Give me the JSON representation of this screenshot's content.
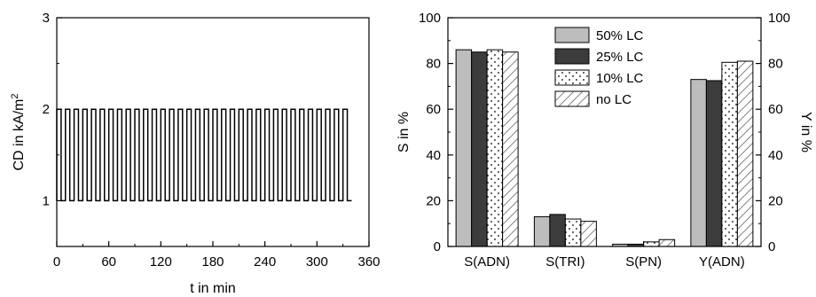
{
  "chart_data": [
    {
      "type": "line",
      "xlabel": "t in min",
      "ylabel": "CD in kA/m²",
      "ylabel_base": "CD in kA/m",
      "ylabel_sup": "2",
      "xlim": [
        0,
        360
      ],
      "ylim": [
        0.5,
        3
      ],
      "x_ticks": [
        0,
        60,
        120,
        180,
        240,
        300,
        360
      ],
      "y_ticks": [
        1,
        2,
        3
      ],
      "series": [
        {
          "description_values": "square wave alternating between 1 and 2 kA/m2, period 10 min",
          "low": 1,
          "high": 2,
          "start": 0,
          "end": 340,
          "period_min": 10,
          "step_edges": [
            0,
            5,
            10,
            15,
            20,
            25,
            30,
            35,
            40,
            45,
            50,
            55,
            60,
            65,
            70,
            75,
            80,
            85,
            90,
            95,
            100,
            105,
            110,
            115,
            120,
            125,
            130,
            135,
            140,
            145,
            150,
            155,
            160,
            165,
            170,
            175,
            180,
            185,
            190,
            195,
            200,
            205,
            210,
            215,
            220,
            225,
            230,
            235,
            240,
            245,
            250,
            255,
            260,
            265,
            270,
            275,
            280,
            285,
            290,
            295,
            300,
            305,
            310,
            315,
            320,
            325,
            330,
            335,
            340
          ]
        }
      ]
    },
    {
      "type": "bar",
      "categories": [
        "S(ADN)",
        "S(TRI)",
        "S(PN)",
        "Y(ADN)"
      ],
      "ylabel": "S in %",
      "ylabel_right": "Y in %",
      "ylim": [
        0,
        100
      ],
      "y_ticks": [
        0,
        20,
        40,
        60,
        80,
        100
      ],
      "legend_position": "top-center",
      "series": [
        {
          "name": "50% LC",
          "values": [
            86,
            13,
            1,
            73
          ],
          "fill": "#bdbdbd",
          "pattern": "solid"
        },
        {
          "name": "25% LC",
          "values": [
            85,
            14,
            1,
            72.5
          ],
          "fill": "#3c3c3c",
          "pattern": "solid"
        },
        {
          "name": "10% LC",
          "values": [
            86,
            12,
            2,
            80.5
          ],
          "fill": "#ffffff",
          "pattern": "dots"
        },
        {
          "name": "no LC",
          "values": [
            85,
            11,
            3,
            81
          ],
          "fill": "#ffffff",
          "pattern": "hatch"
        }
      ]
    }
  ]
}
